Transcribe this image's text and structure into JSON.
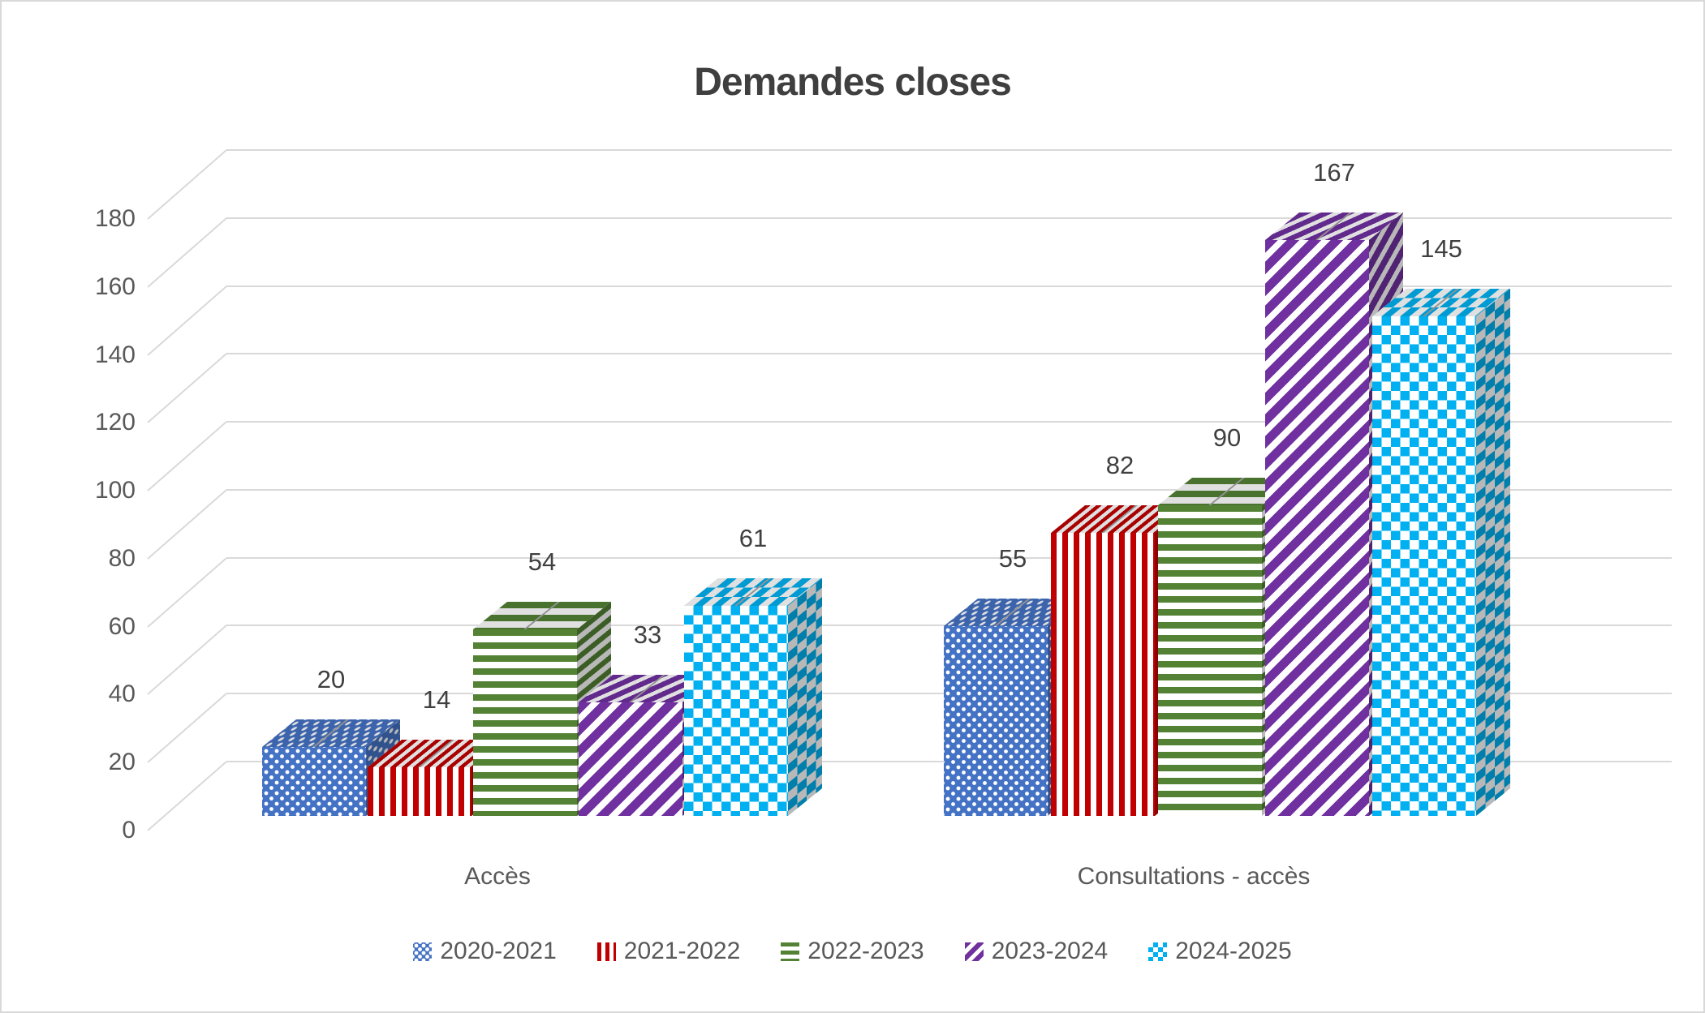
{
  "chart_data": {
    "type": "bar",
    "subtype": "3d-clustered-column",
    "title": "Demandes closes",
    "categories": [
      "Accès",
      "Consultations - accès"
    ],
    "series": [
      {
        "name": "2020-2021",
        "pattern": "dots",
        "color": "#4472C4",
        "values": [
          20,
          55
        ]
      },
      {
        "name": "2021-2022",
        "pattern": "vstripes",
        "color": "#C00000",
        "values": [
          14,
          82
        ]
      },
      {
        "name": "2022-2023",
        "pattern": "hstripes",
        "color": "#548235",
        "values": [
          54,
          90
        ]
      },
      {
        "name": "2023-2024",
        "pattern": "diag",
        "color": "#7030A0",
        "values": [
          33,
          167
        ]
      },
      {
        "name": "2024-2025",
        "pattern": "checker",
        "color": "#00B0F0",
        "values": [
          61,
          145
        ]
      }
    ],
    "data_labels": [
      [
        20,
        55
      ],
      [
        14,
        82
      ],
      [
        54,
        90
      ],
      [
        33,
        167
      ],
      [
        61,
        145
      ]
    ],
    "ylim": [
      0,
      180
    ],
    "yticks": [
      0,
      20,
      40,
      60,
      80,
      100,
      120,
      140,
      160,
      180
    ],
    "grid": true,
    "legend_position": "bottom",
    "colors": {
      "gridline": "#d9d9d9",
      "axis_text": "#595959",
      "title_text": "#3f3f3f",
      "data_label_text": "#404040",
      "top_face_line": "#a6a6a6"
    }
  }
}
